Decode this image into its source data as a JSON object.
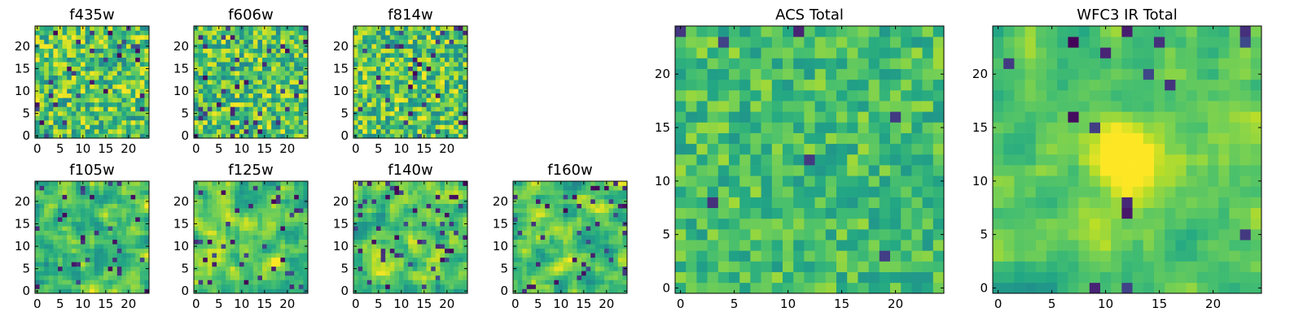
{
  "colormap": "viridis",
  "colors": {
    "background": "#ffffff",
    "axis": "#000000"
  },
  "chart_data": [
    {
      "type": "heatmap",
      "title": "f435w",
      "size": 25,
      "xlim": [
        -0.5,
        24.5
      ],
      "ylim": [
        -0.5,
        24.5
      ],
      "xticks": [
        "0",
        "5",
        "10",
        "15",
        "20"
      ],
      "yticks": [
        "0",
        "5",
        "10",
        "15",
        "20"
      ],
      "seed": 11,
      "texture": "noise",
      "contrast": 1.0,
      "blob": 0,
      "dark_fraction": 0.05
    },
    {
      "type": "heatmap",
      "title": "f606w",
      "size": 25,
      "xlim": [
        -0.5,
        24.5
      ],
      "ylim": [
        -0.5,
        24.5
      ],
      "xticks": [
        "0",
        "5",
        "10",
        "15",
        "20"
      ],
      "yticks": [
        "0",
        "5",
        "10",
        "15",
        "20"
      ],
      "seed": 23,
      "texture": "noise",
      "contrast": 1.0,
      "blob": 0,
      "dark_fraction": 0.05
    },
    {
      "type": "heatmap",
      "title": "f814w",
      "size": 25,
      "xlim": [
        -0.5,
        24.5
      ],
      "ylim": [
        -0.5,
        24.5
      ],
      "xticks": [
        "0",
        "5",
        "10",
        "15",
        "20"
      ],
      "yticks": [
        "0",
        "5",
        "10",
        "15",
        "20"
      ],
      "seed": 37,
      "texture": "noise",
      "contrast": 1.0,
      "blob": 0,
      "dark_fraction": 0.05
    },
    {
      "type": "heatmap",
      "title": "f105w",
      "size": 25,
      "xlim": [
        -0.5,
        24.5
      ],
      "ylim": [
        -0.5,
        24.5
      ],
      "xticks": [
        "0",
        "5",
        "10",
        "15",
        "20"
      ],
      "yticks": [
        "0",
        "5",
        "10",
        "15",
        "20"
      ],
      "seed": 41,
      "texture": "smooth",
      "contrast": 1.0,
      "blob": 0,
      "dark_fraction": 0.06
    },
    {
      "type": "heatmap",
      "title": "f125w",
      "size": 25,
      "xlim": [
        -0.5,
        24.5
      ],
      "ylim": [
        -0.5,
        24.5
      ],
      "xticks": [
        "0",
        "5",
        "10",
        "15",
        "20"
      ],
      "yticks": [
        "0",
        "5",
        "10",
        "15",
        "20"
      ],
      "seed": 53,
      "texture": "smooth",
      "contrast": 1.0,
      "blob": 0,
      "dark_fraction": 0.08
    },
    {
      "type": "heatmap",
      "title": "f140w",
      "size": 25,
      "xlim": [
        -0.5,
        24.5
      ],
      "ylim": [
        -0.5,
        24.5
      ],
      "xticks": [
        "0",
        "5",
        "10",
        "15",
        "20"
      ],
      "yticks": [
        "0",
        "5",
        "10",
        "15",
        "20"
      ],
      "seed": 67,
      "texture": "smooth",
      "contrast": 1.0,
      "blob": 0,
      "dark_fraction": 0.06
    },
    {
      "type": "heatmap",
      "title": "f160w",
      "size": 25,
      "xlim": [
        -0.5,
        24.5
      ],
      "ylim": [
        -0.5,
        24.5
      ],
      "xticks": [
        "0",
        "5",
        "10",
        "15",
        "20"
      ],
      "yticks": [
        "0",
        "5",
        "10",
        "15",
        "20"
      ],
      "seed": 71,
      "texture": "smooth",
      "contrast": 1.0,
      "blob": 0,
      "dark_fraction": 0.07
    },
    {
      "type": "heatmap",
      "title": "ACS Total",
      "size": 25,
      "xlim": [
        -0.5,
        24.5
      ],
      "ylim": [
        -0.5,
        24.5
      ],
      "xticks": [
        "0",
        "5",
        "10",
        "15",
        "20"
      ],
      "yticks": [
        "0",
        "5",
        "10",
        "15",
        "20"
      ],
      "seed": 83,
      "texture": "noise",
      "contrast": 0.6,
      "blob": 0,
      "dark_fraction": 0.015
    },
    {
      "type": "heatmap",
      "title": "WFC3 IR Total",
      "size": 25,
      "xlim": [
        -0.5,
        24.5
      ],
      "ylim": [
        -0.5,
        24.5
      ],
      "xticks": [
        "0",
        "5",
        "10",
        "15",
        "20"
      ],
      "yticks": [
        "0",
        "5",
        "10",
        "15",
        "20"
      ],
      "seed": 97,
      "texture": "smooth",
      "contrast": 0.7,
      "blob": 0.55,
      "blob_center": [
        12,
        12
      ],
      "dark_fraction": 0.03
    }
  ]
}
